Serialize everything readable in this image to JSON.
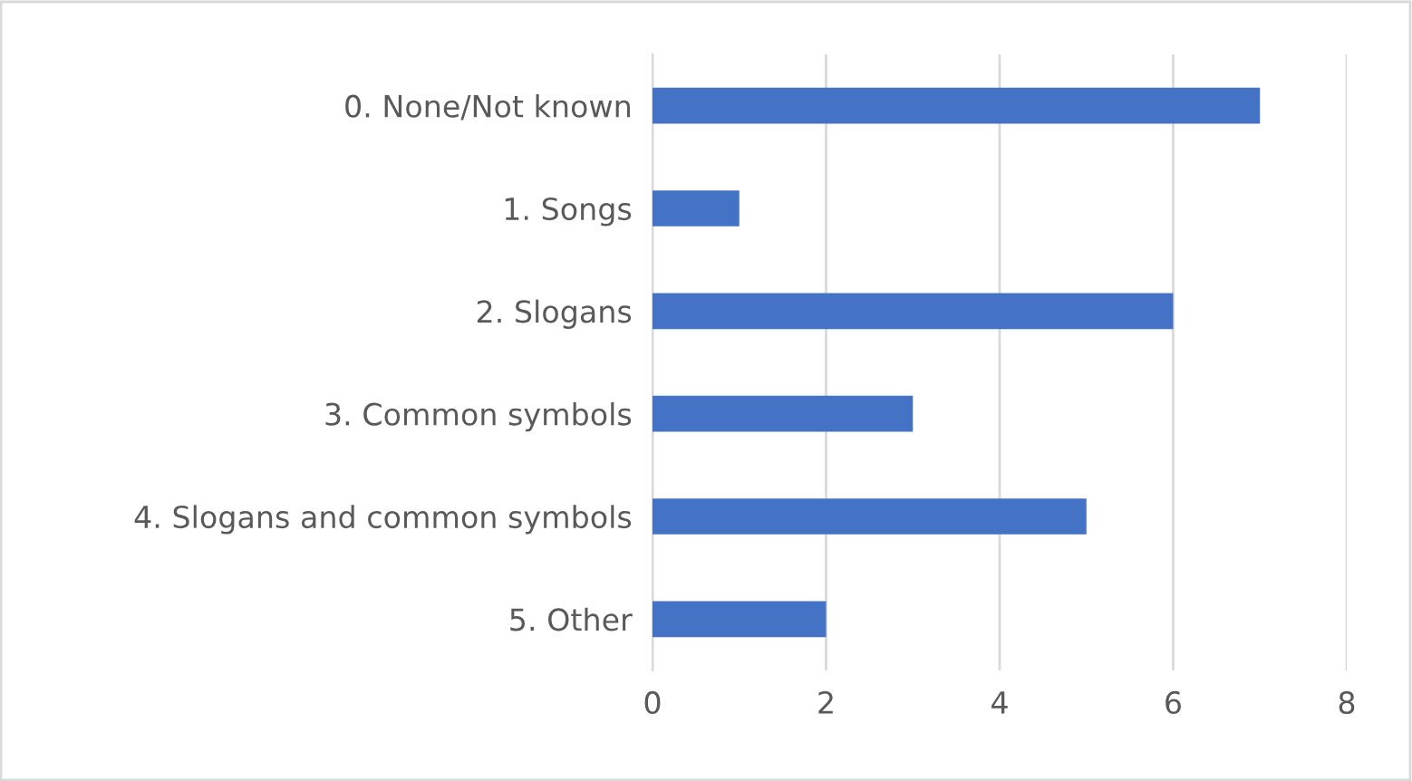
{
  "chart_data": {
    "type": "bar",
    "orientation": "horizontal",
    "categories": [
      "0. None/Not known",
      "1. Songs",
      "2. Slogans",
      "3. Common symbols",
      "4. Slogans and common symbols",
      "5. Other"
    ],
    "values": [
      7,
      1,
      6,
      3,
      5,
      2
    ],
    "color": "#4472c4",
    "xlim": [
      0,
      8
    ],
    "xticks": [
      0,
      2,
      4,
      6,
      8
    ],
    "grid": "x",
    "legend": false
  }
}
